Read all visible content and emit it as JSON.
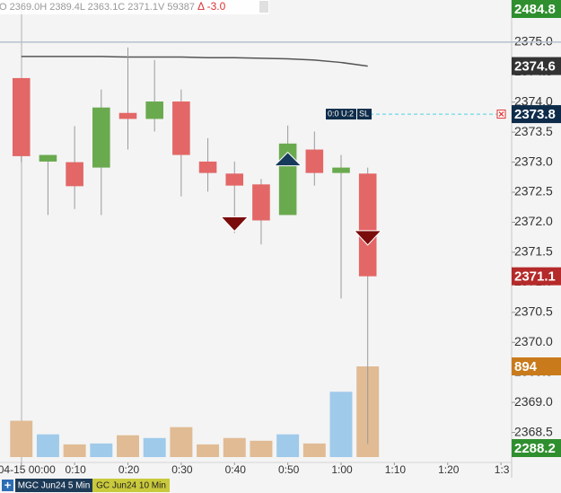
{
  "chart_data": {
    "type": "candlestick",
    "header": {
      "ohlc": "O 2369.0H 2389.4L 2363.1C 2371.1V 59387",
      "change": "Δ -3.0"
    },
    "x": [
      0,
      5,
      10,
      15,
      20,
      25,
      30,
      35,
      40,
      45,
      50,
      55,
      60,
      65
    ],
    "open": [
      2374.4,
      2373.01,
      2373.0,
      2372.91,
      2373.82,
      2373.72,
      2374.01,
      2373.01,
      2372.81,
      2372.63,
      2372.12,
      2373.21,
      2372.82,
      2372.81
    ],
    "high": [
      2374.4,
      2373.12,
      2373.6,
      2374.21,
      2374.91,
      2374.7,
      2374.21,
      2373.4,
      2373.01,
      2372.72,
      2373.61,
      2373.51,
      2373.12,
      2372.91
    ],
    "low": [
      2373.0,
      2372.12,
      2372.22,
      2372.12,
      2373.21,
      2373.51,
      2372.43,
      2372.51,
      2371.82,
      2371.63,
      2372.12,
      2372.61,
      2370.73,
      2368.31
    ],
    "close": [
      2373.1,
      2373.12,
      2372.6,
      2373.91,
      2373.72,
      2374.01,
      2373.12,
      2372.82,
      2372.61,
      2372.03,
      2373.31,
      2372.82,
      2372.91,
      2371.1
    ],
    "up_color": "#6aaa4f",
    "down_color": "#e36767",
    "volume": [
      358,
      224,
      125,
      134,
      215,
      188,
      295,
      125,
      188,
      161,
      224,
      134,
      644,
      894
    ],
    "volume_up_color": "#9fcaea",
    "volume_down_color": "#e0bb94",
    "volume_ylim": [
      0,
      894
    ],
    "ma": {
      "values": [
        2374.76,
        2374.76,
        2374.76,
        2374.76,
        2374.75,
        2374.75,
        2374.75,
        2374.74,
        2374.74,
        2374.73,
        2374.72,
        2374.7,
        2374.66,
        2374.6
      ],
      "color": "#555555"
    },
    "level": 2375.0,
    "stop": {
      "value": 2373.8,
      "text": "0:0 U:2",
      "tag": "SL"
    },
    "markers": [
      {
        "x": 40,
        "price": 2371.85,
        "direction": "down"
      },
      {
        "x": 50,
        "price": 2372.94,
        "direction": "up"
      },
      {
        "x": 65,
        "price": 2371.62,
        "direction": "down"
      }
    ],
    "tags": [
      {
        "value": 2484.8,
        "color": "#2f8f2f",
        "pin": "top"
      },
      {
        "value": 2374.6,
        "color": "#333333"
      },
      {
        "value": 2373.8,
        "color": "#0e2c4a"
      },
      {
        "value": 2371.1,
        "color": "#b52a2a"
      },
      {
        "value": 894,
        "color": "#c97b1c",
        "scale": "volume"
      },
      {
        "value": 2288.2,
        "color": "#2f8f2f",
        "pin": "bottom"
      }
    ],
    "ylim": [
      2368.0,
      2375.7
    ],
    "yticks": [
      {
        "value": 2375.0,
        "label": "2375.0"
      },
      {
        "value": 2374.5,
        "label": "2374.5"
      },
      {
        "value": 2374.0,
        "label": "2374.0"
      },
      {
        "value": 2373.5,
        "label": "2373.5"
      },
      {
        "value": 2373.0,
        "label": "2373.0"
      },
      {
        "value": 2372.5,
        "label": "2372.5"
      },
      {
        "value": 2372.0,
        "label": "2372.0"
      },
      {
        "value": 2371.5,
        "label": "2371.5"
      },
      {
        "value": 2371.0,
        "label": "2371.0"
      },
      {
        "value": 2370.5,
        "label": "2370.5"
      },
      {
        "value": 2370.0,
        "label": "2370.0"
      },
      {
        "value": 2369.5,
        "label": "2369.5"
      },
      {
        "value": 2369.0,
        "label": "2369.0"
      },
      {
        "value": 2368.5,
        "label": "2368.5"
      }
    ],
    "xlim": [
      -4,
      92
    ],
    "xticks": [
      {
        "value": 0,
        "label": "04-15 00:00"
      },
      {
        "value": 10,
        "label": "0:10"
      },
      {
        "value": 20,
        "label": "0:20"
      },
      {
        "value": 30,
        "label": "0:30"
      },
      {
        "value": 40,
        "label": "0:40"
      },
      {
        "value": 50,
        "label": "0:50"
      },
      {
        "value": 60,
        "label": "1:00"
      },
      {
        "value": 70,
        "label": "1:10"
      },
      {
        "value": 80,
        "label": "1:20"
      },
      {
        "value": 90,
        "label": "1:3"
      }
    ],
    "tabs": [
      {
        "label": "MGC Jun24 5 Min",
        "color": "#1d3a57",
        "text_color": "#ffffff"
      },
      {
        "label": "GC Jun24 10 Min",
        "color": "#c9c93c",
        "text_color": "#222222"
      }
    ]
  }
}
